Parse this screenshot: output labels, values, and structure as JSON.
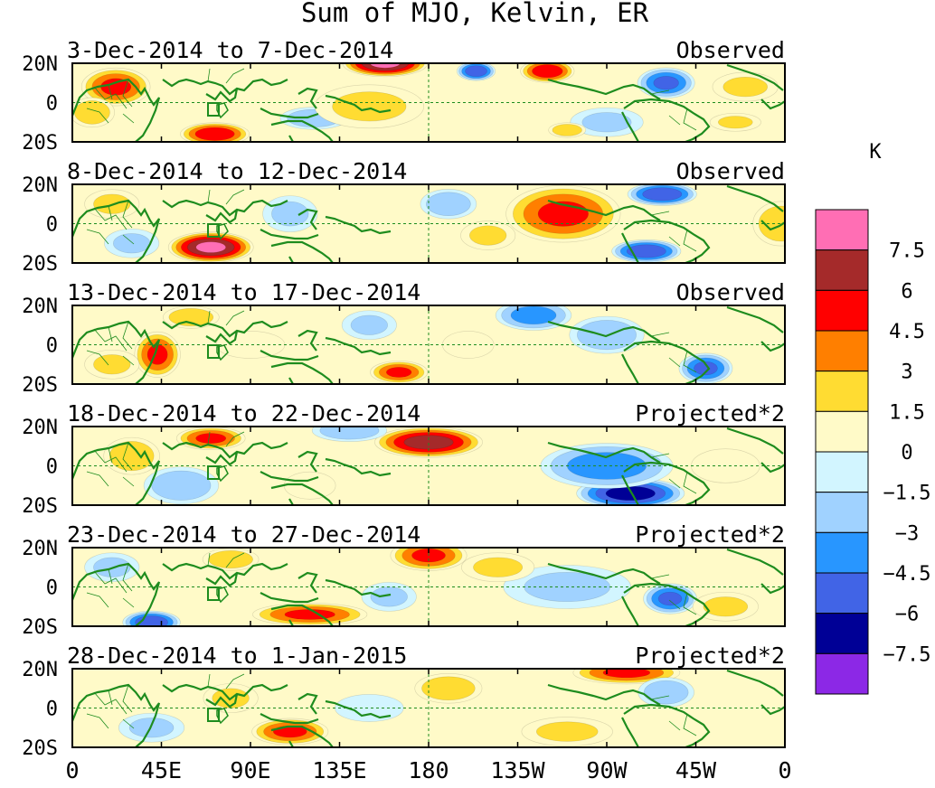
{
  "title": "Sum of MJO, Kelvin, ER",
  "unit": "K",
  "lat_labels": [
    "20N",
    "0",
    "20S"
  ],
  "lon_labels": [
    "0",
    "45E",
    "90E",
    "135E",
    "180",
    "135W",
    "90W",
    "45W",
    "0"
  ],
  "panels": [
    {
      "dates": "3-Dec-2014 to 7-Dec-2014",
      "type": "Observed",
      "blobs": [
        [
          158,
          20,
          22,
          7,
          8
        ],
        [
          72,
          -16,
          18,
          6,
          6
        ],
        [
          240,
          16,
          14,
          6,
          6
        ],
        [
          204,
          16,
          10,
          5,
          -6
        ],
        [
          22,
          8,
          18,
          10,
          5
        ],
        [
          122,
          -8,
          18,
          6,
          -3
        ],
        [
          300,
          10,
          15,
          8,
          -5
        ],
        [
          340,
          8,
          18,
          8,
          2
        ],
        [
          10,
          -5,
          12,
          8,
          3
        ],
        [
          150,
          -2,
          30,
          12,
          2
        ],
        [
          270,
          -10,
          20,
          8,
          -2
        ],
        [
          250,
          -14,
          10,
          4,
          3
        ],
        [
          335,
          -10,
          14,
          5,
          2
        ]
      ]
    },
    {
      "dates": "8-Dec-2014 to 12-Dec-2014",
      "type": "Observed",
      "blobs": [
        [
          70,
          -12,
          22,
          8,
          8
        ],
        [
          248,
          5,
          30,
          15,
          5
        ],
        [
          290,
          -14,
          18,
          6,
          -6
        ],
        [
          298,
          15,
          18,
          6,
          -6
        ],
        [
          190,
          10,
          15,
          8,
          -3
        ],
        [
          110,
          5,
          15,
          10,
          -2
        ],
        [
          358,
          0,
          15,
          12,
          3
        ],
        [
          20,
          10,
          15,
          8,
          2
        ],
        [
          210,
          -6,
          15,
          8,
          2
        ],
        [
          30,
          -10,
          15,
          8,
          -2
        ]
      ]
    },
    {
      "dates": "13-Dec-2014 to 17-Dec-2014",
      "type": "Observed",
      "blobs": [
        [
          43,
          -5,
          12,
          12,
          5
        ],
        [
          165,
          -14,
          15,
          6,
          5
        ],
        [
          320,
          -12,
          14,
          8,
          -5
        ],
        [
          233,
          15,
          20,
          8,
          -4
        ],
        [
          270,
          5,
          20,
          10,
          -3
        ],
        [
          60,
          14,
          15,
          6,
          3
        ],
        [
          90,
          0,
          20,
          8,
          1
        ],
        [
          150,
          10,
          15,
          8,
          -2
        ],
        [
          20,
          -10,
          15,
          8,
          2
        ],
        [
          200,
          0,
          15,
          8,
          1
        ]
      ]
    },
    {
      "dates": "18-Dec-2014 to 22-Dec-2014",
      "type": "Projected*2",
      "blobs": [
        [
          180,
          12,
          28,
          8,
          7
        ],
        [
          70,
          14,
          18,
          6,
          5
        ],
        [
          282,
          -14,
          28,
          8,
          -7
        ],
        [
          270,
          0,
          35,
          12,
          -4
        ],
        [
          55,
          -10,
          20,
          10,
          -3
        ],
        [
          140,
          18,
          20,
          6,
          -3
        ],
        [
          30,
          5,
          15,
          10,
          3
        ],
        [
          120,
          -10,
          15,
          8,
          1
        ],
        [
          330,
          0,
          20,
          10,
          1
        ]
      ]
    },
    {
      "dates": "23-Dec-2014 to 27-Dec-2014",
      "type": "Projected*2",
      "blobs": [
        [
          120,
          -14,
          30,
          6,
          5
        ],
        [
          180,
          16,
          20,
          8,
          5
        ],
        [
          302,
          -6,
          14,
          8,
          -5
        ],
        [
          40,
          -18,
          15,
          6,
          -6
        ],
        [
          250,
          0,
          35,
          12,
          -2
        ],
        [
          80,
          14,
          15,
          6,
          3
        ],
        [
          20,
          10,
          15,
          8,
          -2
        ],
        [
          215,
          10,
          20,
          8,
          2
        ],
        [
          330,
          -10,
          18,
          8,
          2
        ],
        [
          160,
          -5,
          15,
          8,
          -2
        ]
      ]
    },
    {
      "dates": "28-Dec-2014 to 1-Jan-2015",
      "type": "Projected*2",
      "blobs": [
        [
          280,
          18,
          28,
          6,
          5
        ],
        [
          110,
          -12,
          20,
          7,
          5
        ],
        [
          190,
          10,
          18,
          8,
          3
        ],
        [
          300,
          8,
          15,
          8,
          -3
        ],
        [
          40,
          -10,
          18,
          8,
          -2
        ],
        [
          250,
          -12,
          25,
          8,
          2
        ],
        [
          80,
          5,
          15,
          8,
          2
        ],
        [
          150,
          0,
          20,
          8,
          -1
        ]
      ]
    }
  ],
  "colorbar": {
    "labels": [
      "7.5",
      "6",
      "4.5",
      "3",
      "1.5",
      "0",
      "−1.5",
      "−3",
      "−4.5",
      "−6",
      "−7.5"
    ],
    "colors": [
      "#ff6eb4",
      "#a52a2a",
      "#ff0000",
      "#ff7f00",
      "#ffdc32",
      "#fffac8",
      "#d2f5ff",
      "#a0d2ff",
      "#2896ff",
      "#4164e6",
      "#000096",
      "#8c28e6"
    ],
    "thresholds": [
      7.5,
      6,
      4.5,
      3,
      1.5,
      0,
      -1.5,
      -3,
      -4.5,
      -6,
      -7.5
    ]
  }
}
